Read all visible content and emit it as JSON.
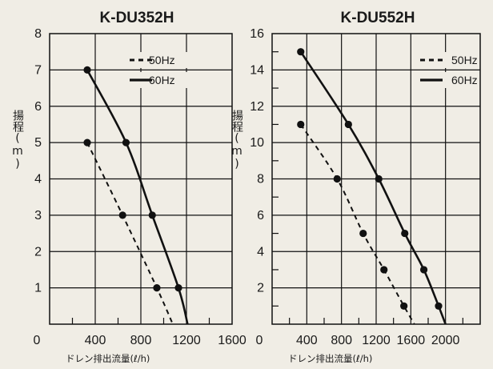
{
  "chart_data": [
    {
      "type": "line",
      "title": "K-DU352H",
      "xlabel": "ドレン排出流量(ℓ/h)",
      "ylabel": "揚程(m)",
      "xlim": [
        0,
        1600
      ],
      "ylim": [
        0,
        8
      ],
      "x_ticks": [
        "400",
        "800",
        "1200",
        "1600"
      ],
      "y_ticks": [
        "1",
        "2",
        "3",
        "4",
        "5",
        "6",
        "7",
        "8"
      ],
      "origin_label": "0",
      "grid": true,
      "legend": "top-right",
      "series": [
        {
          "name": "50Hz",
          "style": "dashed",
          "points": [
            [
              330,
              5
            ],
            [
              640,
              3
            ],
            [
              940,
              1
            ]
          ],
          "curve_end": [
            1080,
            0
          ]
        },
        {
          "name": "60Hz",
          "style": "solid",
          "points": [
            [
              330,
              7
            ],
            [
              670,
              5
            ],
            [
              900,
              3
            ],
            [
              1130,
              1
            ]
          ],
          "curve_end": [
            1210,
            0
          ]
        }
      ]
    },
    {
      "type": "line",
      "title": "K-DU552H",
      "xlabel": "ドレン排出流量(ℓ/h)",
      "ylabel": "揚程(m)",
      "xlim": [
        0,
        2400
      ],
      "ylim": [
        0,
        16
      ],
      "x_ticks": [
        "400",
        "800",
        "1200",
        "1600",
        "2000"
      ],
      "y_ticks": [
        "2",
        "4",
        "6",
        "8",
        "10",
        "12",
        "14",
        "16"
      ],
      "origin_label": "0",
      "grid": true,
      "legend": "top-right",
      "series": [
        {
          "name": "50Hz",
          "style": "dashed",
          "points": [
            [
              330,
              11
            ],
            [
              750,
              8
            ],
            [
              1050,
              5
            ],
            [
              1290,
              3
            ],
            [
              1520,
              1
            ]
          ],
          "curve_end": [
            1640,
            0
          ]
        },
        {
          "name": "60Hz",
          "style": "solid",
          "points": [
            [
              330,
              15
            ],
            [
              880,
              11
            ],
            [
              1230,
              8
            ],
            [
              1530,
              5
            ],
            [
              1750,
              3
            ],
            [
              1920,
              1
            ]
          ],
          "curve_end": [
            2000,
            0
          ]
        }
      ]
    }
  ]
}
